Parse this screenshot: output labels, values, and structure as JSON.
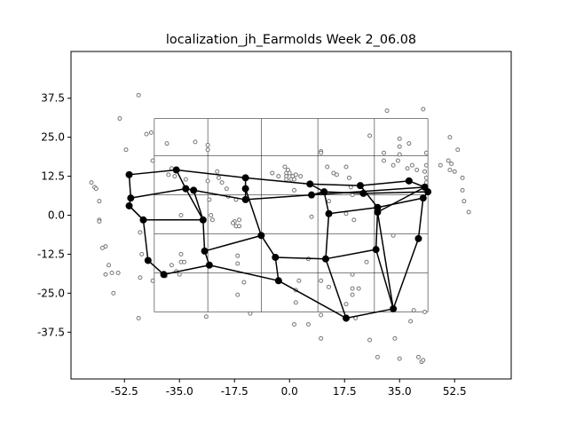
{
  "chart_data": {
    "type": "scatter",
    "title": "localization_jh_Earmolds Week 2_06.08",
    "xlabel": "",
    "ylabel": "",
    "xlim": [
      -69.5,
      70.5
    ],
    "ylim": [
      -52.5,
      52.5
    ],
    "x_ticks": [
      "-52.5",
      "-35.0",
      "-17.5",
      "0.0",
      "17.5",
      "35.0",
      "52.5"
    ],
    "x_tick_values": [
      -52.5,
      -35.0,
      -17.5,
      0.0,
      17.5,
      35.0,
      52.5
    ],
    "y_ticks": [
      "37.5",
      "25.0",
      "12.5",
      "0.0",
      "-12.5",
      "-25.0",
      "-37.5"
    ],
    "y_tick_values": [
      37.5,
      25.0,
      12.5,
      0.0,
      -12.5,
      -25.0,
      -37.5
    ],
    "grid": {
      "x_lines": [
        -43,
        -26,
        -9,
        9,
        27,
        44
      ],
      "y_lines": [
        31,
        19,
        6.5,
        -6,
        -18.5,
        -31
      ]
    },
    "colors": {
      "scatter": "#777777",
      "network": "#000000",
      "frame": "#000000",
      "grid": "#000000"
    },
    "scatter_points": [
      [
        -54,
        31
      ],
      [
        -48,
        38.5
      ],
      [
        -52,
        21
      ],
      [
        -45.5,
        26
      ],
      [
        -44,
        26.5
      ],
      [
        -39,
        23
      ],
      [
        -30,
        23.5
      ],
      [
        -26,
        22.5
      ],
      [
        -26,
        21
      ],
      [
        -43.5,
        17.5
      ],
      [
        -37.5,
        15
      ],
      [
        -38.5,
        13
      ],
      [
        -36.5,
        12.5
      ],
      [
        -33,
        11.5
      ],
      [
        -26,
        11
      ],
      [
        -23,
        14
      ],
      [
        -22.5,
        12
      ],
      [
        -21.5,
        10.5
      ],
      [
        -20,
        8.5
      ],
      [
        -25.5,
        5
      ],
      [
        -25,
        0
      ],
      [
        -19.5,
        6
      ],
      [
        -17,
        5
      ],
      [
        -17.5,
        -2
      ],
      [
        -17,
        -3.5
      ],
      [
        -16,
        -3.5
      ],
      [
        -16,
        -1.5
      ],
      [
        -18,
        -2.5
      ],
      [
        -34.5,
        0
      ],
      [
        -24.5,
        -1.5
      ],
      [
        -63,
        10.5
      ],
      [
        -62,
        9
      ],
      [
        -61.5,
        8.5
      ],
      [
        -60.5,
        4.5
      ],
      [
        -60.5,
        -1.5
      ],
      [
        -60.5,
        -2
      ],
      [
        -58.5,
        -10
      ],
      [
        -59.5,
        -10.5
      ],
      [
        -57.5,
        -16
      ],
      [
        -58.5,
        -19
      ],
      [
        -56.5,
        -18.5
      ],
      [
        -56,
        -25
      ],
      [
        -54.5,
        -18.5
      ],
      [
        -48,
        -33
      ],
      [
        -47.5,
        -5.5
      ],
      [
        -47,
        -12.5
      ],
      [
        -47.5,
        -20
      ],
      [
        -43.5,
        -21
      ],
      [
        -39.5,
        -19.5
      ],
      [
        -37.5,
        -16
      ],
      [
        -34.5,
        -15
      ],
      [
        -36,
        -18
      ],
      [
        -35,
        -19
      ],
      [
        -34.5,
        -12.5
      ],
      [
        -33.5,
        -15
      ],
      [
        -26.5,
        -32.5
      ],
      [
        -16.5,
        -25.5
      ],
      [
        -16.5,
        -13
      ],
      [
        -16.5,
        -15.5
      ],
      [
        -14.5,
        -21.5
      ],
      [
        -12.5,
        -31.5
      ],
      [
        -5.5,
        13.5
      ],
      [
        -3.5,
        12.5
      ],
      [
        -1.5,
        15.5
      ],
      [
        -1,
        13.5
      ],
      [
        -1,
        12.5
      ],
      [
        -0.5,
        14.5
      ],
      [
        0,
        13.5
      ],
      [
        -1,
        11.5
      ],
      [
        0.5,
        11.5
      ],
      [
        1,
        12.5
      ],
      [
        2,
        13
      ],
      [
        3.5,
        12.5
      ],
      [
        1.5,
        8
      ],
      [
        1.5,
        11.5
      ],
      [
        10,
        20.5
      ],
      [
        10,
        20
      ],
      [
        12,
        15.5
      ],
      [
        14,
        13.5
      ],
      [
        15,
        13
      ],
      [
        18,
        15.5
      ],
      [
        19,
        12
      ],
      [
        10,
        7
      ],
      [
        12.5,
        4.5
      ],
      [
        19.5,
        9
      ],
      [
        20,
        6.5
      ],
      [
        18,
        0.5
      ],
      [
        20.5,
        -1.5
      ],
      [
        7,
        -0.5
      ],
      [
        6,
        -14
      ],
      [
        3,
        -21
      ],
      [
        10,
        -21
      ],
      [
        12.5,
        -23
      ],
      [
        20,
        -19
      ],
      [
        20,
        -23.5
      ],
      [
        24.5,
        -15
      ],
      [
        22,
        -23.5
      ],
      [
        20,
        -25.5
      ],
      [
        2,
        -24
      ],
      [
        2,
        -28
      ],
      [
        1.5,
        -35
      ],
      [
        6,
        -35
      ],
      [
        10,
        -32
      ],
      [
        10,
        -39.5
      ],
      [
        18,
        -33.5
      ],
      [
        18,
        -28.5
      ],
      [
        21,
        -33
      ],
      [
        28,
        -45.5
      ],
      [
        33.5,
        -39.5
      ],
      [
        35,
        -46
      ],
      [
        38.5,
        -34
      ],
      [
        39.5,
        -30.5
      ],
      [
        43,
        -31
      ],
      [
        33,
        -6.5
      ],
      [
        41,
        -45.5
      ],
      [
        42,
        -47
      ],
      [
        42.5,
        -46.5
      ],
      [
        25.5,
        -40
      ],
      [
        25.5,
        25.5
      ],
      [
        31,
        33.5
      ],
      [
        35,
        24.5
      ],
      [
        35,
        22
      ],
      [
        35,
        19.5
      ],
      [
        38,
        23
      ],
      [
        42.5,
        34
      ],
      [
        30,
        20
      ],
      [
        30,
        17.5
      ],
      [
        33,
        16
      ],
      [
        34.5,
        17.5
      ],
      [
        37.5,
        15
      ],
      [
        40.5,
        14.5
      ],
      [
        43.5,
        20
      ],
      [
        39,
        16
      ],
      [
        43.5,
        16
      ],
      [
        43,
        14
      ],
      [
        43.5,
        12
      ],
      [
        43.5,
        10.5
      ],
      [
        48,
        16
      ],
      [
        50.5,
        17.5
      ],
      [
        51.5,
        16.5
      ],
      [
        51,
        14.5
      ],
      [
        52.5,
        14
      ],
      [
        51,
        25
      ],
      [
        53.5,
        21
      ],
      [
        55,
        12
      ],
      [
        55,
        8
      ],
      [
        55.5,
        4.5
      ],
      [
        57,
        1
      ]
    ],
    "network_nodes": [
      [
        -51,
        13
      ],
      [
        -50.5,
        5.5
      ],
      [
        -51,
        3
      ],
      [
        -36,
        14.5
      ],
      [
        -33,
        8.5
      ],
      [
        -30.5,
        8
      ],
      [
        -14,
        12
      ],
      [
        -14,
        8.5
      ],
      [
        -14,
        5
      ],
      [
        -46.5,
        -1.5
      ],
      [
        -27.5,
        -1.5
      ],
      [
        -45,
        -14.5
      ],
      [
        -40,
        -19
      ],
      [
        -27,
        -11.5
      ],
      [
        -25.5,
        -16
      ],
      [
        -9,
        -6.5
      ],
      [
        -4.5,
        -13.5
      ],
      [
        -3.5,
        -21
      ],
      [
        7,
        6.5
      ],
      [
        6.5,
        10
      ],
      [
        11,
        7.5
      ],
      [
        12.5,
        0.5
      ],
      [
        11.5,
        -14
      ],
      [
        22.5,
        9.5
      ],
      [
        23.5,
        7
      ],
      [
        28,
        2.5
      ],
      [
        28,
        1
      ],
      [
        27.5,
        -11
      ],
      [
        18,
        -33
      ],
      [
        33,
        -30
      ],
      [
        38,
        11
      ],
      [
        43,
        9
      ],
      [
        44,
        7.5
      ],
      [
        42.5,
        5.5
      ],
      [
        41,
        -7.5
      ]
    ],
    "network_edges": [
      [
        0,
        3
      ],
      [
        3,
        4
      ],
      [
        4,
        5
      ],
      [
        5,
        8
      ],
      [
        3,
        6
      ],
      [
        6,
        7
      ],
      [
        7,
        8
      ],
      [
        0,
        1
      ],
      [
        1,
        2
      ],
      [
        2,
        9
      ],
      [
        1,
        4
      ],
      [
        4,
        10
      ],
      [
        10,
        5
      ],
      [
        9,
        10
      ],
      [
        9,
        11
      ],
      [
        11,
        12
      ],
      [
        12,
        14
      ],
      [
        14,
        13
      ],
      [
        13,
        10
      ],
      [
        13,
        15
      ],
      [
        15,
        7
      ],
      [
        15,
        16
      ],
      [
        16,
        17
      ],
      [
        17,
        14
      ],
      [
        16,
        22
      ],
      [
        22,
        21
      ],
      [
        21,
        20
      ],
      [
        20,
        19
      ],
      [
        19,
        6
      ],
      [
        19,
        23
      ],
      [
        23,
        25
      ],
      [
        20,
        24
      ],
      [
        20,
        18
      ],
      [
        18,
        8
      ],
      [
        18,
        31
      ],
      [
        24,
        32
      ],
      [
        23,
        30
      ],
      [
        30,
        31
      ],
      [
        31,
        32
      ],
      [
        32,
        33
      ],
      [
        33,
        25
      ],
      [
        25,
        21
      ],
      [
        25,
        26
      ],
      [
        26,
        27
      ],
      [
        27,
        22
      ],
      [
        27,
        29
      ],
      [
        29,
        34
      ],
      [
        34,
        33
      ],
      [
        26,
        29
      ],
      [
        28,
        22
      ],
      [
        28,
        29
      ],
      [
        28,
        17
      ],
      [
        26,
        31
      ],
      [
        2,
        9
      ]
    ]
  }
}
